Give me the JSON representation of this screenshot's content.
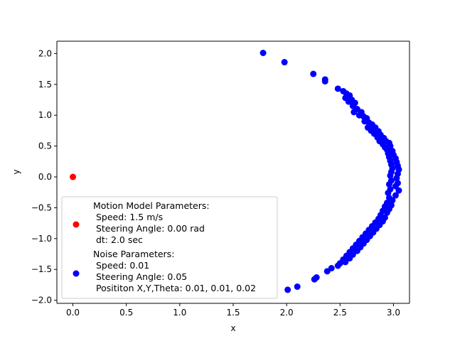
{
  "chart_data": {
    "type": "scatter",
    "xlabel": "x",
    "ylabel": "y",
    "xlim": [
      -0.15,
      3.15
    ],
    "ylim": [
      -2.05,
      2.2
    ],
    "x_ticks": [
      0.0,
      0.5,
      1.0,
      1.5,
      2.0,
      2.5,
      3.0
    ],
    "y_ticks": [
      -2.0,
      -1.5,
      -1.0,
      -0.5,
      0.0,
      0.5,
      1.0,
      1.5,
      2.0
    ],
    "x_tick_labels": [
      "0.0",
      "0.5",
      "1.0",
      "1.5",
      "2.0",
      "2.5",
      "3.0"
    ],
    "y_tick_labels": [
      "−2.0",
      "−1.5",
      "−1.0",
      "−0.5",
      "0.0",
      "0.5",
      "1.0",
      "1.5",
      "2.0"
    ],
    "grid": false,
    "legend_placement": "lower-left",
    "colors": {
      "start": "#ff0000",
      "particles": "#0000ff"
    },
    "series": [
      {
        "name": "start",
        "color": "#ff0000",
        "points": [
          [
            0.0,
            0.0
          ]
        ],
        "legend_lines": [
          "Motion Model Parameters:",
          " Speed: 1.5 m/s",
          " Steering Angle: 0.00 rad",
          " dt: 2.0 sec"
        ]
      },
      {
        "name": "particles",
        "color": "#0000ff",
        "points": [
          [
            1.78,
            2.01
          ],
          [
            1.98,
            1.86
          ],
          [
            2.25,
            1.67
          ],
          [
            2.36,
            1.58
          ],
          [
            2.36,
            1.55
          ],
          [
            2.48,
            1.43
          ],
          [
            2.53,
            1.39
          ],
          [
            2.56,
            1.35
          ],
          [
            2.59,
            1.32
          ],
          [
            2.55,
            1.28
          ],
          [
            2.61,
            1.25
          ],
          [
            2.58,
            1.22
          ],
          [
            2.64,
            1.2
          ],
          [
            2.62,
            1.15
          ],
          [
            2.66,
            1.1
          ],
          [
            2.63,
            1.05
          ],
          [
            2.7,
            1.05
          ],
          [
            2.68,
            1.0
          ],
          [
            2.72,
            0.98
          ],
          [
            2.75,
            0.95
          ],
          [
            2.73,
            0.9
          ],
          [
            2.77,
            0.88
          ],
          [
            2.8,
            0.85
          ],
          [
            2.76,
            0.8
          ],
          [
            2.83,
            0.8
          ],
          [
            2.79,
            0.75
          ],
          [
            2.86,
            0.74
          ],
          [
            2.82,
            0.7
          ],
          [
            2.88,
            0.68
          ],
          [
            2.85,
            0.64
          ],
          [
            2.91,
            0.63
          ],
          [
            2.87,
            0.58
          ],
          [
            2.93,
            0.58
          ],
          [
            2.9,
            0.53
          ],
          [
            2.96,
            0.55
          ],
          [
            2.92,
            0.48
          ],
          [
            2.97,
            0.5
          ],
          [
            2.94,
            0.44
          ],
          [
            2.99,
            0.42
          ],
          [
            2.95,
            0.38
          ],
          [
            3.0,
            0.36
          ],
          [
            2.96,
            0.32
          ],
          [
            3.02,
            0.3
          ],
          [
            2.97,
            0.26
          ],
          [
            3.03,
            0.24
          ],
          [
            2.98,
            0.2
          ],
          [
            3.04,
            0.18
          ],
          [
            2.99,
            0.14
          ],
          [
            3.05,
            0.12
          ],
          [
            2.98,
            0.08
          ],
          [
            3.04,
            0.05
          ],
          [
            2.97,
            0.02
          ],
          [
            3.03,
            -0.02
          ],
          [
            2.98,
            -0.06
          ],
          [
            3.04,
            -0.1
          ],
          [
            2.96,
            -0.12
          ],
          [
            3.02,
            -0.15
          ],
          [
            2.97,
            -0.2
          ],
          [
            3.05,
            -0.22
          ],
          [
            2.95,
            -0.26
          ],
          [
            3.02,
            -0.3
          ],
          [
            2.96,
            -0.34
          ],
          [
            2.99,
            -0.38
          ],
          [
            2.94,
            -0.42
          ],
          [
            2.98,
            -0.46
          ],
          [
            2.92,
            -0.48
          ],
          [
            2.96,
            -0.52
          ],
          [
            2.9,
            -0.55
          ],
          [
            2.94,
            -0.58
          ],
          [
            2.88,
            -0.62
          ],
          [
            2.92,
            -0.66
          ],
          [
            2.86,
            -0.68
          ],
          [
            2.9,
            -0.72
          ],
          [
            2.83,
            -0.74
          ],
          [
            2.87,
            -0.78
          ],
          [
            2.8,
            -0.8
          ],
          [
            2.84,
            -0.84
          ],
          [
            2.77,
            -0.86
          ],
          [
            2.81,
            -0.9
          ],
          [
            2.74,
            -0.92
          ],
          [
            2.78,
            -0.96
          ],
          [
            2.71,
            -0.98
          ],
          [
            2.75,
            -1.02
          ],
          [
            2.68,
            -1.04
          ],
          [
            2.72,
            -1.08
          ],
          [
            2.65,
            -1.1
          ],
          [
            2.69,
            -1.14
          ],
          [
            2.62,
            -1.16
          ],
          [
            2.66,
            -1.2
          ],
          [
            2.59,
            -1.22
          ],
          [
            2.62,
            -1.26
          ],
          [
            2.56,
            -1.28
          ],
          [
            2.59,
            -1.32
          ],
          [
            2.53,
            -1.34
          ],
          [
            2.55,
            -1.38
          ],
          [
            2.5,
            -1.4
          ],
          [
            2.48,
            -1.44
          ],
          [
            2.42,
            -1.48
          ],
          [
            2.38,
            -1.53
          ],
          [
            2.28,
            -1.63
          ],
          [
            2.26,
            -1.66
          ],
          [
            2.1,
            -1.78
          ],
          [
            2.01,
            -1.83
          ]
        ],
        "legend_lines": [
          "Noise Parameters:",
          " Speed: 0.01",
          " Steering Angle: 0.05",
          " Posititon X,Y,Theta: 0.01, 0.01, 0.02"
        ]
      }
    ]
  }
}
